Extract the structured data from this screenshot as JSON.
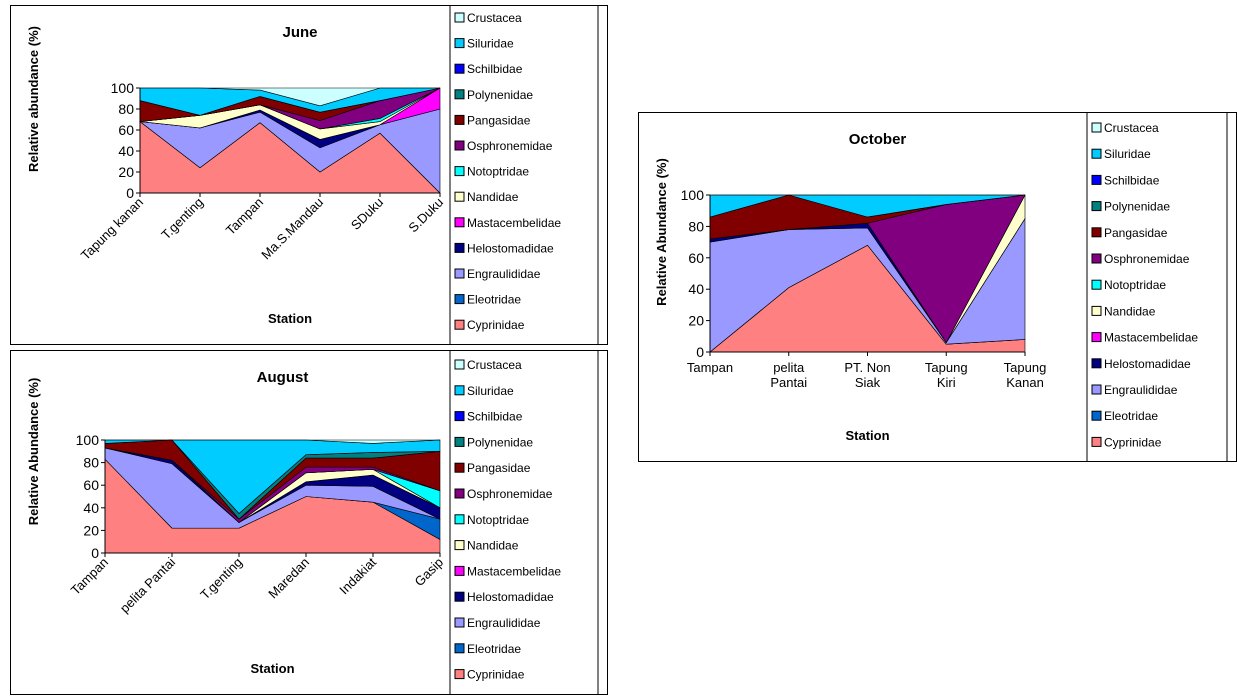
{
  "chart_data": [
    {
      "type": "area",
      "title": "June",
      "x_label": "Station",
      "y_label": "Relative abundance  (%)",
      "categories": [
        "Tapung kanan",
        "T.genting",
        "Tampan",
        "Ma.S.Mandau",
        "SDuku",
        "S.Duku"
      ],
      "ylim": [
        0,
        100
      ],
      "yticks": [
        0,
        20,
        40,
        60,
        80,
        100
      ],
      "series": [
        {
          "name": "Cyprinidae",
          "color": "#FF8080",
          "values": [
            68,
            24,
            67,
            20,
            57,
            0
          ]
        },
        {
          "name": "Eleotridae",
          "color": "#0066CC",
          "values": [
            0,
            0,
            0,
            0,
            0,
            0
          ]
        },
        {
          "name": "Engraulididae",
          "color": "#9999FF",
          "values": [
            0,
            38,
            10,
            23,
            8,
            80
          ]
        },
        {
          "name": "Helostomadidae",
          "color": "#000080",
          "values": [
            0,
            0,
            2,
            8,
            0,
            0
          ]
        },
        {
          "name": "Mastacembelidae",
          "color": "#FF00FF",
          "values": [
            0,
            0,
            0,
            0,
            0,
            20
          ]
        },
        {
          "name": "Nandidae",
          "color": "#FFFFCC",
          "values": [
            0,
            12,
            5,
            10,
            3,
            0
          ]
        },
        {
          "name": "Notoptridae",
          "color": "#00FFFF",
          "values": [
            0,
            0,
            0,
            0,
            3,
            0
          ]
        },
        {
          "name": "Osphronemidae",
          "color": "#800080",
          "values": [
            0,
            0,
            0,
            8,
            17,
            0
          ]
        },
        {
          "name": "Pangasidae",
          "color": "#800000",
          "values": [
            20,
            0,
            8,
            8,
            0,
            0
          ]
        },
        {
          "name": "Polynenidae",
          "color": "#008080",
          "values": [
            0,
            0,
            0,
            0,
            0,
            0
          ]
        },
        {
          "name": "Schilbidae",
          "color": "#0000FF",
          "values": [
            0,
            0,
            0,
            0,
            0,
            0
          ]
        },
        {
          "name": "Siluridae",
          "color": "#00CCFF",
          "values": [
            12,
            26,
            6,
            6,
            12,
            0
          ]
        },
        {
          "name": "Crustacea",
          "color": "#CCFFFF",
          "values": [
            0,
            0,
            2,
            17,
            0,
            0
          ]
        }
      ]
    },
    {
      "type": "area",
      "title": "August",
      "x_label": "Station",
      "y_label": "Relative Abundance  (%)",
      "categories": [
        "Tampan",
        "pelita Pantai",
        "T.genting",
        "Maredan",
        "Indakiat",
        "Gasip"
      ],
      "ylim": [
        0,
        100
      ],
      "yticks": [
        0,
        20,
        40,
        60,
        80,
        100
      ],
      "series": [
        {
          "name": "Cyprinidae",
          "color": "#FF8080",
          "values": [
            83,
            22,
            22,
            50,
            45,
            12
          ]
        },
        {
          "name": "Eleotridae",
          "color": "#0066CC",
          "values": [
            0,
            0,
            0,
            0,
            0,
            18
          ]
        },
        {
          "name": "Engraulididae",
          "color": "#9999FF",
          "values": [
            10,
            57,
            5,
            10,
            14,
            0
          ]
        },
        {
          "name": "Helostomadidae",
          "color": "#000080",
          "values": [
            0,
            3,
            0,
            3,
            10,
            10
          ]
        },
        {
          "name": "Mastacembelidae",
          "color": "#FF00FF",
          "values": [
            0,
            0,
            0,
            0,
            0,
            0
          ]
        },
        {
          "name": "Nandidae",
          "color": "#FFFFCC",
          "values": [
            0,
            0,
            0,
            8,
            5,
            0
          ]
        },
        {
          "name": "Notoptridae",
          "color": "#00FFFF",
          "values": [
            0,
            0,
            0,
            0,
            0,
            15
          ]
        },
        {
          "name": "Osphronemidae",
          "color": "#800080",
          "values": [
            0,
            0,
            3,
            5,
            2,
            0
          ]
        },
        {
          "name": "Pangasidae",
          "color": "#800000",
          "values": [
            4,
            18,
            0,
            8,
            8,
            35
          ]
        },
        {
          "name": "Polynenidae",
          "color": "#008080",
          "values": [
            0,
            0,
            5,
            3,
            5,
            0
          ]
        },
        {
          "name": "Schilbidae",
          "color": "#0000FF",
          "values": [
            0,
            0,
            0,
            0,
            0,
            0
          ]
        },
        {
          "name": "Siluridae",
          "color": "#00CCFF",
          "values": [
            3,
            0,
            65,
            13,
            8,
            10
          ]
        },
        {
          "name": "Crustacea",
          "color": "#CCFFFF",
          "values": [
            0,
            0,
            0,
            0,
            3,
            0
          ]
        }
      ]
    },
    {
      "type": "area",
      "title": "October",
      "x_label": "Station",
      "y_label": "Relative Abundance  (%)",
      "categories": [
        "Tampan",
        "pelita\nPantai",
        "PT. Non\nSiak",
        "Tapung\nKiri",
        "Tapung\nKanan"
      ],
      "ylim": [
        0,
        100
      ],
      "yticks": [
        0,
        20,
        40,
        60,
        80,
        100
      ],
      "series": [
        {
          "name": "Cyprinidae",
          "color": "#FF8080",
          "values": [
            0,
            41,
            68,
            5,
            8
          ]
        },
        {
          "name": "Eleotridae",
          "color": "#0066CC",
          "values": [
            0,
            0,
            0,
            0,
            0
          ]
        },
        {
          "name": "Engraulididae",
          "color": "#9999FF",
          "values": [
            70,
            37,
            11,
            1,
            77
          ]
        },
        {
          "name": "Helostomadidae",
          "color": "#000080",
          "values": [
            2,
            0,
            3,
            0,
            0
          ]
        },
        {
          "name": "Mastacembelidae",
          "color": "#FF00FF",
          "values": [
            0,
            0,
            0,
            0,
            0
          ]
        },
        {
          "name": "Nandidae",
          "color": "#FFFFCC",
          "values": [
            0,
            0,
            0,
            0,
            15
          ]
        },
        {
          "name": "Notoptridae",
          "color": "#00FFFF",
          "values": [
            0,
            0,
            0,
            0,
            0
          ]
        },
        {
          "name": "Osphronemidae",
          "color": "#800080",
          "values": [
            0,
            0,
            0,
            88,
            0
          ]
        },
        {
          "name": "Pangasidae",
          "color": "#800000",
          "values": [
            14,
            22,
            4,
            0,
            0
          ]
        },
        {
          "name": "Polynenidae",
          "color": "#008080",
          "values": [
            0,
            0,
            0,
            0,
            0
          ]
        },
        {
          "name": "Schilbidae",
          "color": "#0000FF",
          "values": [
            0,
            0,
            0,
            0,
            0
          ]
        },
        {
          "name": "Siluridae",
          "color": "#00CCFF",
          "values": [
            14,
            0,
            14,
            6,
            0
          ]
        },
        {
          "name": "Crustacea",
          "color": "#CCFFFF",
          "values": [
            0,
            0,
            0,
            0,
            0
          ]
        }
      ]
    }
  ]
}
